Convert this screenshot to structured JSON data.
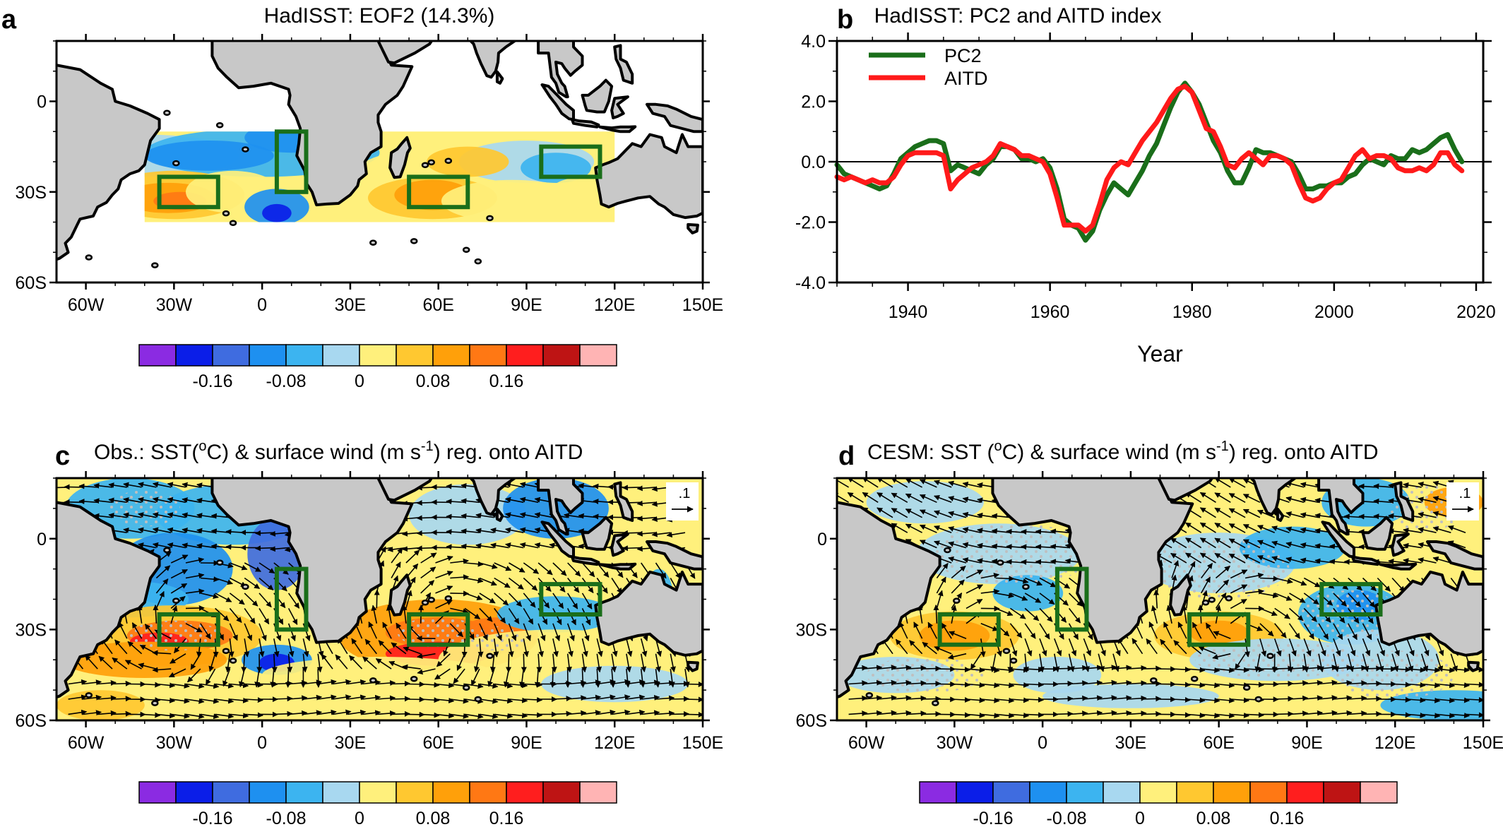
{
  "panels": {
    "a": {
      "label": "a",
      "title": "HadISST: EOF2 (14.3%)"
    },
    "b": {
      "label": "b",
      "title": "HadISST: PC2 and AITD index"
    },
    "c": {
      "label": "c",
      "title_pre": "Obs.: SST(",
      "title_deg": "o",
      "title_mid": "C) & surface wind (m s",
      "title_exp": "-1",
      "title_post": ") reg. onto AITD",
      "ref_vector": ".1"
    },
    "d": {
      "label": "d",
      "title_pre": "CESM: SST (",
      "title_deg": "o",
      "title_mid": "C) & surface wind (m s",
      "title_exp": "-1",
      "title_post": ") reg. onto AITD",
      "ref_vector": ".1"
    }
  },
  "map_axes": {
    "lon_ticks": [
      "60W",
      "30W",
      "0",
      "30E",
      "60E",
      "90E",
      "120E",
      "150E"
    ],
    "lon_values": [
      -60,
      -30,
      0,
      30,
      60,
      90,
      120,
      150
    ],
    "lat_ticks_a": [
      "0",
      "30S",
      "60S"
    ],
    "lat_ticks_c": [
      "0",
      "30S",
      "60S"
    ],
    "lat_ticks_d": [
      "0",
      "30S",
      "60S"
    ],
    "lat_values": [
      0,
      -30,
      -60
    ],
    "lon_range": [
      -70,
      150
    ],
    "lat_range": [
      -60,
      20
    ]
  },
  "colorbar": {
    "colors": [
      "#8b2be2",
      "#0b1ee8",
      "#3f6ce0",
      "#1e90f0",
      "#3cb4f0",
      "#a8d8f0",
      "#fff07c",
      "#ffc830",
      "#ffa00a",
      "#ff7814",
      "#ff1e1e",
      "#be1414",
      "#ffb4b4"
    ],
    "labels": [
      "-0.16",
      "-0.08",
      "0",
      "0.08",
      "0.16"
    ]
  },
  "boxes": [
    {
      "lon": [
        -35,
        -15
      ],
      "lat": [
        -25,
        -35
      ]
    },
    {
      "lon": [
        5,
        15
      ],
      "lat": [
        -10,
        -30
      ]
    },
    {
      "lon": [
        50,
        70
      ],
      "lat": [
        -25,
        -35
      ]
    },
    {
      "lon": [
        95,
        115
      ],
      "lat": [
        -15,
        -25
      ]
    }
  ],
  "chart_data": [
    {
      "panel": "b",
      "type": "line",
      "title": "HadISST: PC2 and AITD index",
      "xlabel": "Year",
      "ylabel": "",
      "xlim": [
        1930,
        2021
      ],
      "ylim": [
        -4.0,
        4.0
      ],
      "xticks": [
        "1940",
        "1960",
        "1980",
        "2000",
        "2020"
      ],
      "xtick_values": [
        1940,
        1960,
        1980,
        2000,
        2020
      ],
      "yticks": [
        "4.0",
        "2.0",
        "0.0",
        "-2.0",
        "-4.0"
      ],
      "ytick_values": [
        4,
        2,
        0,
        -2,
        -4
      ],
      "legend_position": "top-left",
      "series": [
        {
          "name": "PC2",
          "color": "#1a6e1a",
          "x": [
            1930,
            1931,
            1932,
            1933,
            1934,
            1935,
            1936,
            1937,
            1938,
            1939,
            1940,
            1941,
            1942,
            1943,
            1944,
            1945,
            1946,
            1947,
            1948,
            1949,
            1950,
            1951,
            1952,
            1953,
            1954,
            1955,
            1956,
            1957,
            1958,
            1959,
            1960,
            1961,
            1962,
            1963,
            1964,
            1965,
            1966,
            1967,
            1968,
            1969,
            1970,
            1971,
            1972,
            1973,
            1974,
            1975,
            1976,
            1977,
            1978,
            1979,
            1980,
            1981,
            1982,
            1983,
            1984,
            1985,
            1986,
            1987,
            1988,
            1989,
            1990,
            1991,
            1992,
            1993,
            1994,
            1995,
            1996,
            1997,
            1998,
            1999,
            2000,
            2001,
            2002,
            2003,
            2004,
            2005,
            2006,
            2007,
            2008,
            2009,
            2010,
            2011,
            2012,
            2013,
            2014,
            2015,
            2016,
            2017,
            2018
          ],
          "y": [
            -0.1,
            -0.4,
            -0.5,
            -0.6,
            -0.7,
            -0.8,
            -0.9,
            -0.8,
            -0.4,
            0.1,
            0.3,
            0.5,
            0.6,
            0.7,
            0.7,
            0.6,
            -0.3,
            -0.1,
            -0.2,
            -0.3,
            -0.4,
            -0.1,
            0.1,
            0.5,
            0.5,
            0.4,
            0.1,
            0.1,
            0.0,
            0.1,
            -0.2,
            -0.9,
            -1.9,
            -2.1,
            -2.2,
            -2.6,
            -2.3,
            -1.6,
            -1.1,
            -0.7,
            -0.9,
            -1.1,
            -0.7,
            -0.3,
            0.2,
            0.6,
            1.2,
            1.8,
            2.3,
            2.6,
            2.3,
            1.9,
            1.3,
            0.7,
            0.3,
            -0.3,
            -0.7,
            -0.7,
            -0.2,
            0.4,
            0.3,
            0.3,
            0.2,
            0.1,
            0.0,
            -0.4,
            -0.9,
            -0.9,
            -0.8,
            -0.8,
            -0.7,
            -0.7,
            -0.5,
            -0.4,
            -0.1,
            0.1,
            0.0,
            -0.1,
            0.2,
            0.1,
            0.1,
            0.4,
            0.3,
            0.4,
            0.6,
            0.8,
            0.9,
            0.4,
            0.0
          ]
        },
        {
          "name": "AITD",
          "color": "#ff1a1a",
          "x": [
            1930,
            1931,
            1932,
            1933,
            1934,
            1935,
            1936,
            1937,
            1938,
            1939,
            1940,
            1941,
            1942,
            1943,
            1944,
            1945,
            1946,
            1947,
            1948,
            1949,
            1950,
            1951,
            1952,
            1953,
            1954,
            1955,
            1956,
            1957,
            1958,
            1959,
            1960,
            1961,
            1962,
            1963,
            1964,
            1965,
            1966,
            1967,
            1968,
            1969,
            1970,
            1971,
            1972,
            1973,
            1974,
            1975,
            1976,
            1977,
            1978,
            1979,
            1980,
            1981,
            1982,
            1983,
            1984,
            1985,
            1986,
            1987,
            1988,
            1989,
            1990,
            1991,
            1992,
            1993,
            1994,
            1995,
            1996,
            1997,
            1998,
            1999,
            2000,
            2001,
            2002,
            2003,
            2004,
            2005,
            2006,
            2007,
            2008,
            2009,
            2010,
            2011,
            2012,
            2013,
            2014,
            2015,
            2016,
            2017,
            2018
          ],
          "y": [
            -0.5,
            -0.6,
            -0.5,
            -0.6,
            -0.7,
            -0.6,
            -0.7,
            -0.7,
            -0.5,
            -0.1,
            0.2,
            0.3,
            0.3,
            0.3,
            0.3,
            0.2,
            -0.9,
            -0.6,
            -0.4,
            -0.2,
            -0.1,
            0.0,
            0.2,
            0.6,
            0.5,
            0.4,
            0.2,
            0.2,
            0.1,
            0.0,
            -0.4,
            -1.2,
            -2.1,
            -2.1,
            -2.1,
            -2.3,
            -2.1,
            -1.4,
            -0.6,
            -0.2,
            0.0,
            -0.1,
            0.3,
            0.7,
            1.0,
            1.3,
            1.7,
            2.1,
            2.4,
            2.5,
            2.3,
            1.7,
            1.1,
            1.0,
            0.5,
            -0.1,
            -0.2,
            0.1,
            0.3,
            0.1,
            -0.1,
            0.2,
            0.2,
            0.1,
            -0.1,
            -0.7,
            -1.2,
            -1.3,
            -1.2,
            -0.9,
            -0.7,
            -0.6,
            -0.2,
            0.2,
            0.4,
            0.1,
            0.2,
            0.2,
            0.1,
            -0.2,
            -0.3,
            -0.3,
            -0.2,
            -0.3,
            -0.1,
            0.3,
            0.3,
            -0.1,
            -0.3
          ]
        }
      ]
    }
  ]
}
